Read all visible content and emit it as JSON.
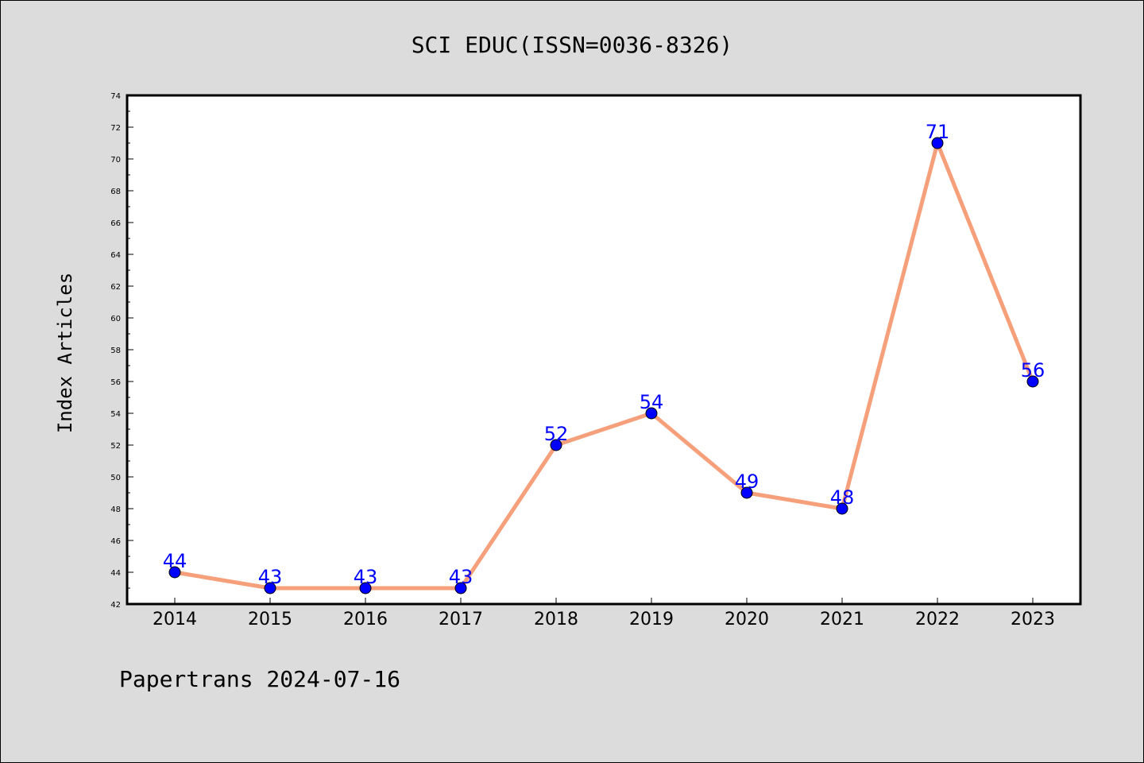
{
  "chart_data": {
    "type": "line",
    "title": "SCI EDUC(ISSN=0036-8326)",
    "xlabel": "",
    "ylabel": "Index Articles",
    "categories": [
      "2014",
      "2015",
      "2016",
      "2017",
      "2018",
      "2019",
      "2020",
      "2021",
      "2022",
      "2023"
    ],
    "series": [
      {
        "values": [
          44,
          43,
          43,
          43,
          52,
          54,
          49,
          48,
          71,
          56
        ]
      }
    ],
    "ylim": [
      42,
      74
    ],
    "yticks": [
      42,
      44,
      46,
      48,
      50,
      52,
      54,
      56,
      58,
      60,
      62,
      64,
      66,
      68,
      70,
      72,
      74
    ],
    "grid": false,
    "legend": "none",
    "line_color": "#f5a07a",
    "marker_color": "#0000ff",
    "label_color": "#0000ff",
    "plot_background": "#ffffff",
    "page_background": "#dcdcdc"
  },
  "footer": "Papertrans 2024-07-16"
}
